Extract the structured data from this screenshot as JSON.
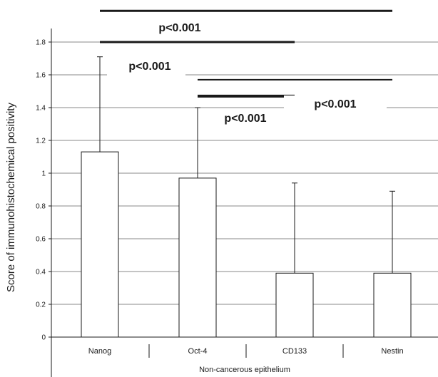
{
  "chart_data": {
    "type": "bar",
    "title": "",
    "xlabel": "Non-cancerous epithelium",
    "ylabel": "Score of immunohistochemical positivity",
    "categories": [
      "Nanog",
      "Oct-4",
      "CD133",
      "Nestin"
    ],
    "series": [
      {
        "values": [
          1.13,
          0.97,
          0.39,
          0.39
        ],
        "error_upper": [
          1.71,
          1.4,
          0.94,
          0.89
        ]
      }
    ],
    "ylim": [
      0,
      1.8
    ],
    "yticks": [
      "0",
      "0.2",
      "0.4",
      "0.6",
      "0.8",
      "1",
      "1.2",
      "1.4",
      "1.6",
      "1.8"
    ],
    "grid": true,
    "legend": "none",
    "annotations": [
      {
        "text": "",
        "from": "Nanog",
        "to": "Nestin",
        "y": 1.99
      },
      {
        "text": "p<0.001",
        "from": "Nanog",
        "to": "CD133",
        "y": 1.8
      },
      {
        "text": "p<0.001",
        "from": "Oct-4",
        "to": "Nestin",
        "y": 1.57
      },
      {
        "text": "p<0.001",
        "from": "Oct-4",
        "to": "CD133",
        "y": 1.47
      }
    ],
    "colors": {
      "bar_fill": "#ffffff",
      "bar_stroke": "#1a1a1a",
      "grid": "#888888",
      "bracket": "#1a1a1a"
    }
  }
}
